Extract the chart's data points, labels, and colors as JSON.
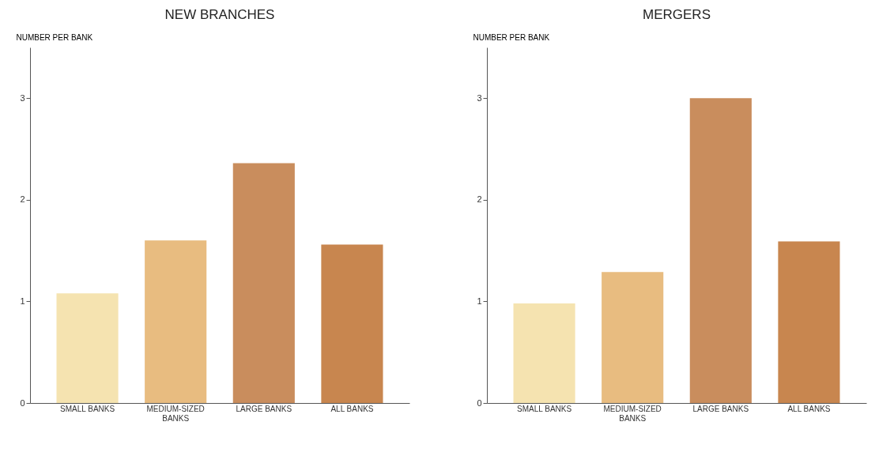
{
  "chart_data": [
    {
      "type": "bar",
      "title": "NEW BRANCHES",
      "ylabel": "NUMBER PER BANK",
      "categories": [
        "SMALL BANKS",
        "MEDIUM-SIZED BANKS",
        "LARGE BANKS",
        "ALL BANKS"
      ],
      "values": [
        1.08,
        1.6,
        2.36,
        1.56
      ],
      "colors": [
        "#f5e3b0",
        "#e8bc80",
        "#c98d5d",
        "#c8864f"
      ],
      "ylim": [
        0,
        3.5
      ],
      "yticks": [
        0,
        1,
        2,
        3
      ],
      "grid": false,
      "legend": false
    },
    {
      "type": "bar",
      "title": "MERGERS",
      "ylabel": "NUMBER PER BANK",
      "categories": [
        "SMALL BANKS",
        "MEDIUM-SIZED BANKS",
        "LARGE BANKS",
        "ALL BANKS"
      ],
      "values": [
        0.98,
        1.29,
        3.0,
        1.59
      ],
      "colors": [
        "#f5e3b0",
        "#e8bc80",
        "#c98d5d",
        "#c8864f"
      ],
      "ylim": [
        0,
        3.5
      ],
      "yticks": [
        0,
        1,
        2,
        3
      ],
      "grid": false,
      "legend": false
    }
  ]
}
